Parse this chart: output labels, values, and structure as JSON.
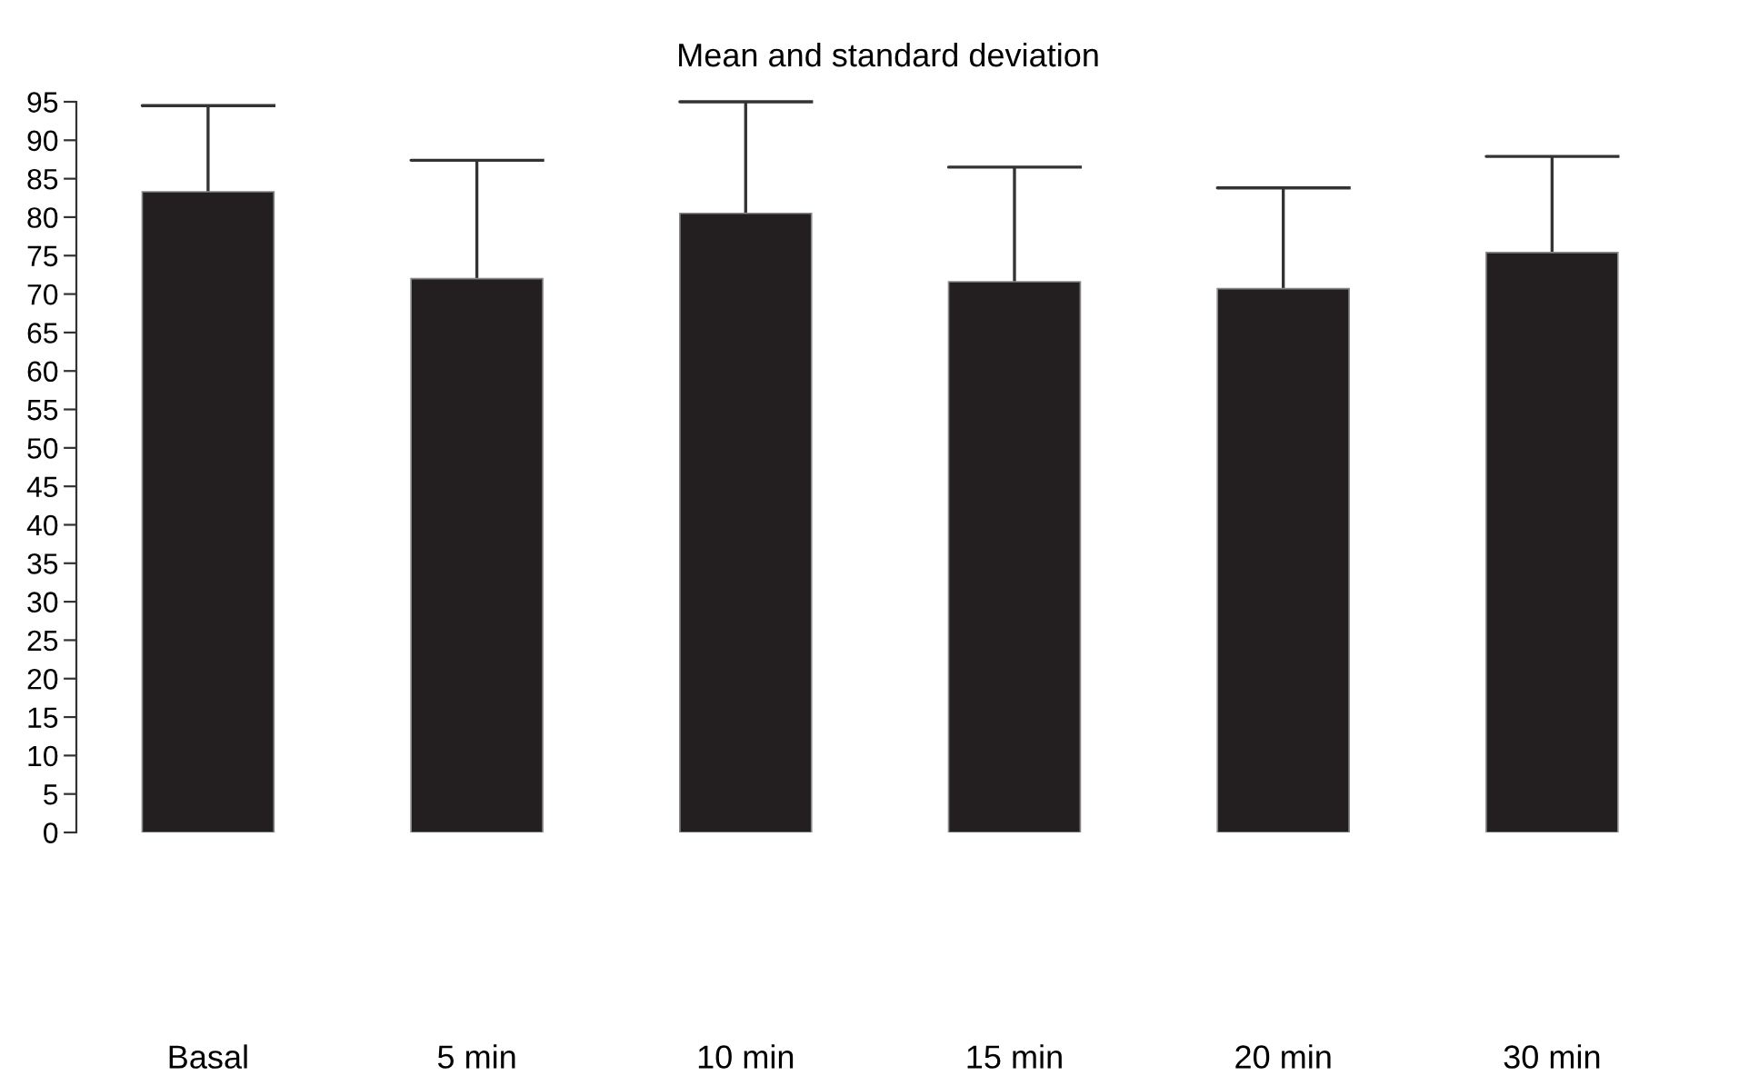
{
  "chart_data": {
    "type": "bar",
    "title": "Mean and standard deviation",
    "categories": [
      "Basal",
      "5 min",
      "10 min",
      "15 min",
      "20 min",
      "30 min"
    ],
    "values": [
      83.3,
      72.0,
      80.5,
      71.6,
      70.7,
      75.4
    ],
    "errors": [
      [
        83.3,
        94.5
      ],
      [
        72.0,
        87.4
      ],
      [
        80.5,
        95.0
      ],
      [
        71.6,
        86.5
      ],
      [
        70.7,
        83.8
      ],
      [
        75.4,
        87.9
      ]
    ],
    "color": "#231f20",
    "ylim": [
      0,
      95
    ],
    "yticks": [
      0,
      5,
      10,
      15,
      20,
      25,
      30,
      35,
      40,
      45,
      50,
      55,
      60,
      65,
      70,
      75,
      80,
      85,
      90,
      95
    ],
    "grid": false
  }
}
